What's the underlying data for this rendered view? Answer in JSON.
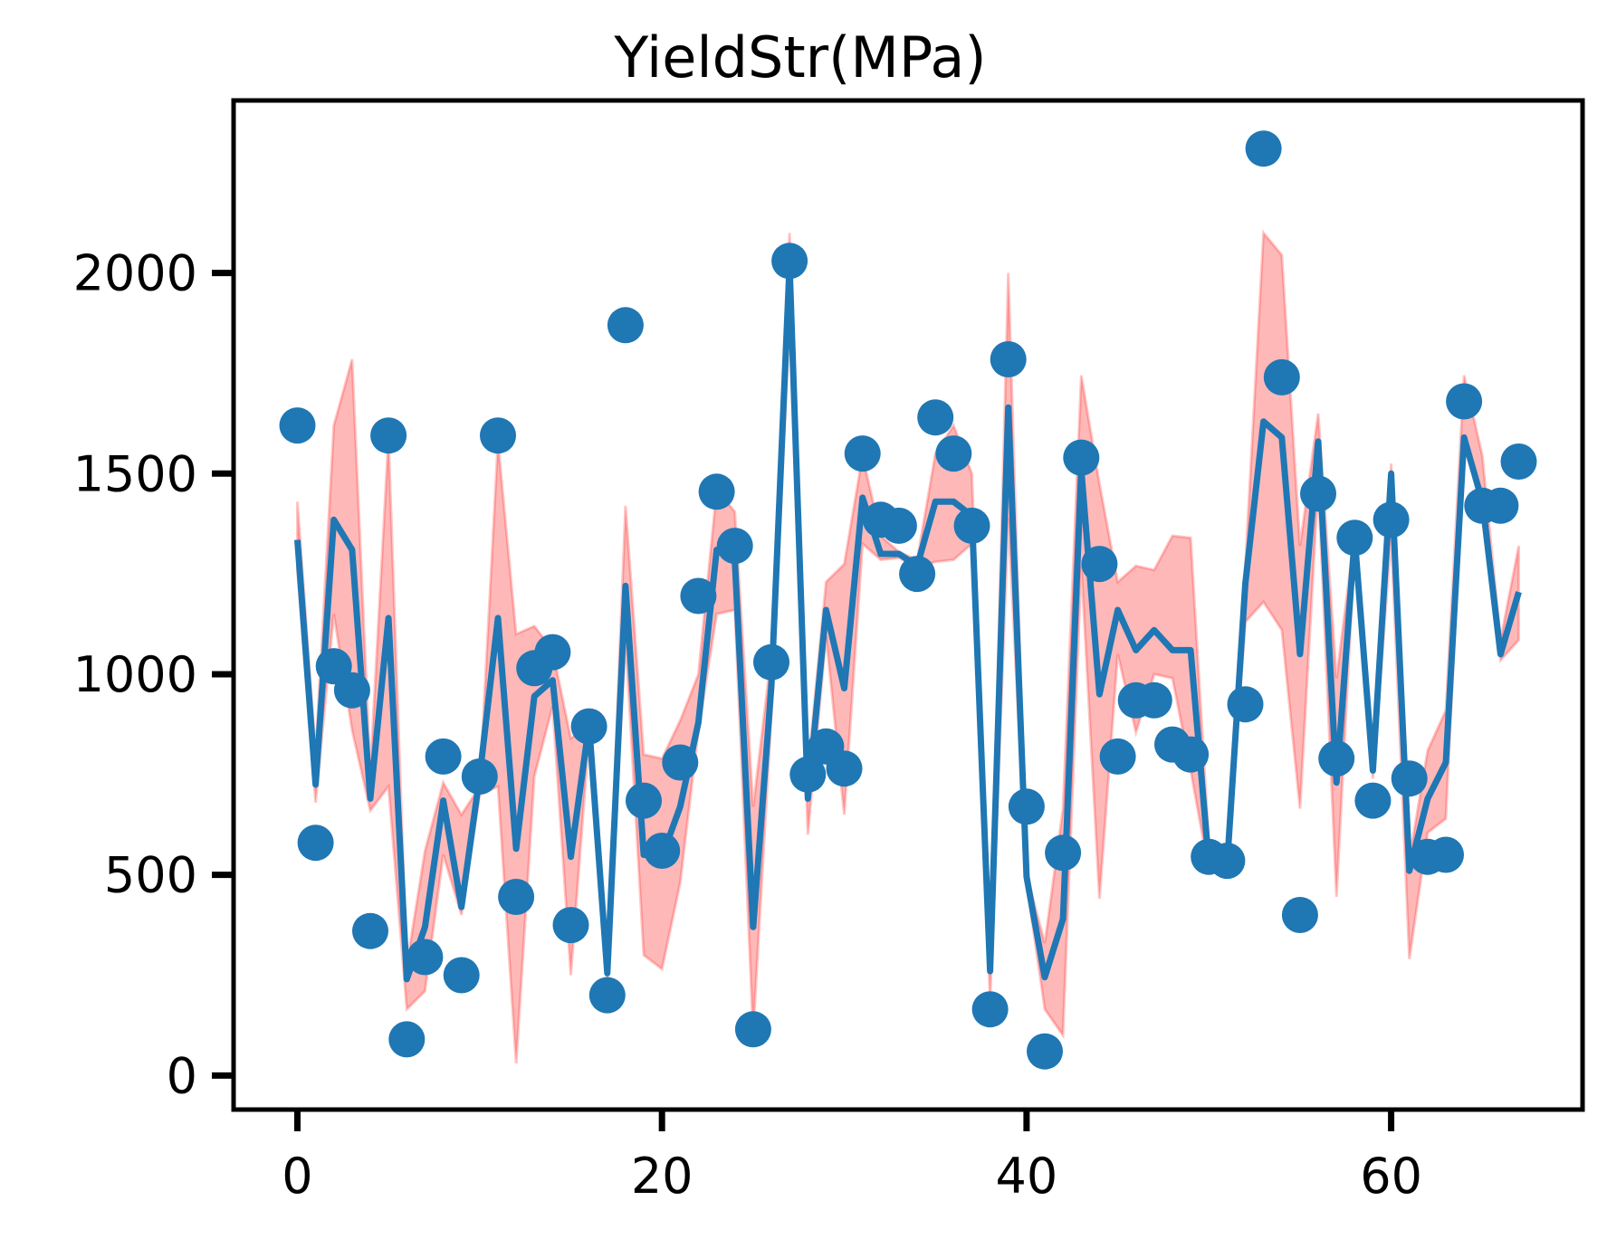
{
  "chart_data": {
    "type": "line",
    "title": "YieldStr(MPa)",
    "xlabel": "",
    "ylabel": "",
    "xlim": [
      -3.5,
      70.5
    ],
    "ylim": [
      -85,
      2430
    ],
    "xticks": [
      0,
      20,
      40,
      60
    ],
    "yticks": [
      0,
      500,
      1000,
      1500,
      2000
    ],
    "grid": false,
    "legend": "none",
    "x": [
      0,
      1,
      2,
      3,
      4,
      5,
      6,
      7,
      8,
      9,
      10,
      11,
      12,
      13,
      14,
      15,
      16,
      17,
      18,
      19,
      20,
      21,
      22,
      23,
      24,
      25,
      26,
      27,
      28,
      29,
      30,
      31,
      32,
      33,
      34,
      35,
      36,
      37,
      38,
      39,
      40,
      41,
      42,
      43,
      44,
      45,
      46,
      47,
      48,
      49,
      50,
      51,
      52,
      53,
      54,
      55,
      56,
      57,
      58,
      59,
      60,
      61,
      62,
      63,
      64,
      65,
      66,
      67
    ],
    "series": [
      {
        "kind": "scatter",
        "color": "#1f77b4",
        "values": [
          1620,
          580,
          1020,
          960,
          360,
          1595,
          90,
          295,
          795,
          250,
          745,
          1595,
          445,
          1015,
          1055,
          375,
          870,
          200,
          1870,
          685,
          560,
          780,
          1195,
          1455,
          1320,
          115,
          1030,
          2030,
          750,
          820,
          765,
          1550,
          1385,
          1370,
          1250,
          1640,
          1550,
          1370,
          165,
          1785,
          670,
          60,
          555,
          1540,
          1275,
          795,
          935,
          935,
          825,
          800,
          545,
          535,
          925,
          2310,
          1740,
          400,
          1450,
          790,
          1340,
          685,
          1385,
          740,
          545,
          550,
          1680,
          1420,
          1420,
          1530
        ]
      },
      {
        "kind": "line",
        "color": "#1f77b4",
        "values": [
          1335,
          725,
          1385,
          1310,
          690,
          1140,
          240,
          370,
          685,
          420,
          745,
          1140,
          565,
          945,
          985,
          545,
          875,
          255,
          1220,
          550,
          545,
          670,
          880,
          1310,
          1280,
          370,
          970,
          2020,
          690,
          1160,
          965,
          1440,
          1300,
          1300,
          1270,
          1430,
          1430,
          1395,
          260,
          1665,
          495,
          245,
          390,
          1510,
          950,
          1160,
          1060,
          1110,
          1060,
          1060,
          530,
          525,
          1225,
          1630,
          1590,
          1050,
          1580,
          730,
          1340,
          760,
          1500,
          510,
          690,
          780,
          1590,
          1430,
          1050,
          1205
        ]
      },
      {
        "kind": "band",
        "color": "#ff0000",
        "opacity": 0.28,
        "upper": [
          1430,
          800,
          1620,
          1785,
          760,
          1590,
          275,
          560,
          730,
          650,
          720,
          1580,
          1100,
          1120,
          1060,
          840,
          875,
          280,
          1420,
          800,
          790,
          885,
          1000,
          1460,
          1405,
          670,
          1050,
          2100,
          760,
          1230,
          1275,
          1545,
          1345,
          1305,
          1285,
          1550,
          1620,
          1500,
          270,
          2000,
          500,
          330,
          665,
          1745,
          1475,
          1230,
          1270,
          1260,
          1345,
          1340,
          580,
          540,
          1270,
          2100,
          2045,
          1320,
          1650,
          990,
          1350,
          770,
          1525,
          540,
          810,
          910,
          1745,
          1545,
          1085,
          1320
        ],
        "lower": [
          1260,
          680,
          1150,
          860,
          660,
          720,
          165,
          210,
          550,
          400,
          700,
          720,
          30,
          745,
          920,
          250,
          845,
          220,
          1090,
          300,
          265,
          480,
          860,
          1150,
          1160,
          105,
          900,
          1880,
          600,
          1095,
          650,
          1325,
          1285,
          1290,
          1265,
          1280,
          1285,
          1325,
          185,
          1390,
          480,
          165,
          100,
          1270,
          440,
          1050,
          855,
          1000,
          990,
          760,
          510,
          515,
          1130,
          1180,
          1110,
          665,
          1475,
          445,
          1320,
          740,
          1345,
          290,
          605,
          640,
          1585,
          1430,
          1035,
          1085
        ]
      }
    ]
  }
}
